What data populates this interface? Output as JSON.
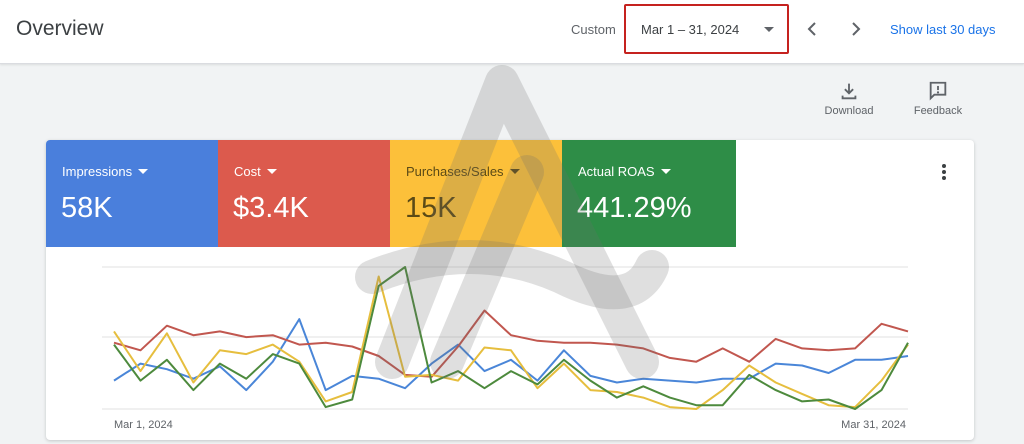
{
  "header": {
    "title": "Overview",
    "range_label": "Custom",
    "date_range": "Mar 1 – 31, 2024",
    "show_last": "Show last 30 days"
  },
  "actions": {
    "download_label": "Download",
    "feedback_label": "Feedback"
  },
  "icons": [
    "download-icon",
    "feedback-icon",
    "chevron-left-icon",
    "chevron-right-icon",
    "dropdown-caret-icon",
    "more-vert-icon"
  ],
  "metrics": [
    {
      "label": "Impressions",
      "value": "58K",
      "color": "#4a7fdc"
    },
    {
      "label": "Cost",
      "value": "$3.4K",
      "color": "#dc5a4d"
    },
    {
      "label": "Purchases/Sales",
      "value": "15K",
      "color": "#fcc03a"
    },
    {
      "label": "Actual ROAS",
      "value": "441.29%",
      "color": "#2e8d47"
    }
  ],
  "chart_data": {
    "type": "line",
    "x_start_label": "Mar 1, 2024",
    "x_end_label": "Mar 31, 2024",
    "x": [
      1,
      2,
      3,
      4,
      5,
      6,
      7,
      8,
      9,
      10,
      11,
      12,
      13,
      14,
      15,
      16,
      17,
      18,
      19,
      20,
      21,
      22,
      23,
      24,
      25,
      26,
      27,
      28,
      29,
      30,
      31
    ],
    "grid": true,
    "legend": "none",
    "series": [
      {
        "name": "Impressions",
        "color": "#4a86d8",
        "values": [
          30,
          48,
          42,
          32,
          45,
          20,
          50,
          95,
          20,
          35,
          32,
          22,
          48,
          68,
          40,
          52,
          30,
          62,
          35,
          28,
          32,
          30,
          28,
          32,
          32,
          48,
          46,
          38,
          52,
          52,
          56
        ]
      },
      {
        "name": "Cost",
        "color": "#c1574f",
        "values": [
          70,
          62,
          88,
          78,
          82,
          76,
          78,
          68,
          70,
          66,
          56,
          36,
          34,
          66,
          104,
          78,
          72,
          70,
          70,
          68,
          64,
          54,
          50,
          64,
          50,
          74,
          64,
          62,
          64,
          90,
          82
        ]
      },
      {
        "name": "Purchases/Sales",
        "color": "#e6be3e",
        "values": [
          82,
          40,
          80,
          28,
          62,
          58,
          68,
          50,
          8,
          18,
          140,
          34,
          36,
          30,
          65,
          62,
          22,
          48,
          20,
          18,
          12,
          2,
          0,
          20,
          46,
          28,
          16,
          4,
          2,
          30,
          68
        ]
      },
      {
        "name": "Actual ROAS",
        "color": "#4d8a3d",
        "values": [
          68,
          30,
          52,
          20,
          48,
          32,
          58,
          48,
          2,
          10,
          130,
          150,
          28,
          40,
          22,
          40,
          26,
          52,
          30,
          12,
          24,
          12,
          4,
          4,
          36,
          20,
          8,
          10,
          0,
          20,
          70
        ]
      }
    ]
  }
}
